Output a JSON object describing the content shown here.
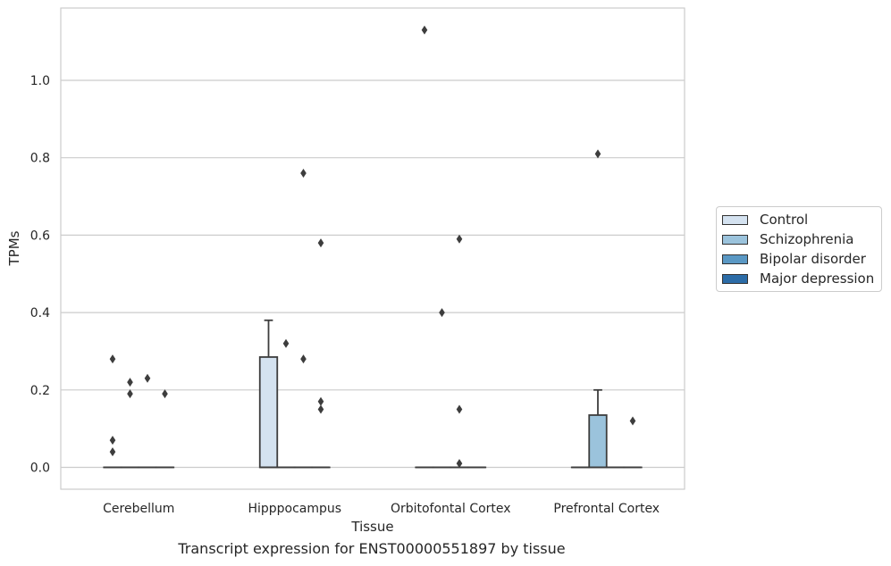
{
  "chart_data": {
    "type": "box",
    "xlabel": "Tissue",
    "ylabel": "TPMs",
    "categories": [
      "Cerebellum",
      "Hipppocampus",
      "Orbitofontal Cortex",
      "Prefrontal Cortex"
    ],
    "ylim": [
      -0.055,
      1.19
    ],
    "yticks": [
      0.0,
      0.2,
      0.4,
      0.6,
      0.8,
      1.0
    ],
    "grid": true,
    "legend_position": "right",
    "series": [
      {
        "name": "Control",
        "color": "#d4e2f0",
        "boxes": [
          {
            "q1": 0,
            "median": 0,
            "q3": 0,
            "whisker_low": 0,
            "whisker_high": 0,
            "outliers": [
              0.04,
              0.07,
              0.28
            ]
          },
          {
            "q1": 0,
            "median": 0,
            "q3": 0.285,
            "whisker_low": 0,
            "whisker_high": 0.38,
            "outliers": []
          },
          {
            "q1": 0,
            "median": 0,
            "q3": 0,
            "whisker_low": 0,
            "whisker_high": 0,
            "outliers": [
              1.13
            ]
          },
          {
            "q1": 0,
            "median": 0,
            "q3": 0,
            "whisker_low": 0,
            "whisker_high": 0,
            "outliers": []
          }
        ]
      },
      {
        "name": "Schizophrenia",
        "color": "#9bc3dc",
        "boxes": [
          {
            "q1": 0,
            "median": 0,
            "q3": 0,
            "whisker_low": 0,
            "whisker_high": 0,
            "outliers": [
              0.19,
              0.22
            ]
          },
          {
            "q1": 0,
            "median": 0,
            "q3": 0,
            "whisker_low": 0,
            "whisker_high": 0,
            "outliers": [
              0.32
            ]
          },
          {
            "q1": 0,
            "median": 0,
            "q3": 0,
            "whisker_low": 0,
            "whisker_high": 0,
            "outliers": [
              0.4
            ]
          },
          {
            "q1": 0,
            "median": 0,
            "q3": 0.135,
            "whisker_low": 0,
            "whisker_high": 0.2,
            "outliers": [
              0.81
            ]
          }
        ]
      },
      {
        "name": "Bipolar disorder",
        "color": "#5a98c4",
        "boxes": [
          {
            "q1": 0,
            "median": 0,
            "q3": 0,
            "whisker_low": 0,
            "whisker_high": 0,
            "outliers": [
              0.23
            ]
          },
          {
            "q1": 0,
            "median": 0,
            "q3": 0,
            "whisker_low": 0,
            "whisker_high": 0,
            "outliers": [
              0.28,
              0.76
            ]
          },
          {
            "q1": 0,
            "median": 0,
            "q3": 0,
            "whisker_low": 0,
            "whisker_high": 0,
            "outliers": [
              0.01,
              0.15,
              0.59
            ]
          },
          {
            "q1": 0,
            "median": 0,
            "q3": 0,
            "whisker_low": 0,
            "whisker_high": 0,
            "outliers": []
          }
        ]
      },
      {
        "name": "Major depression",
        "color": "#2c6ca7",
        "boxes": [
          {
            "q1": 0,
            "median": 0,
            "q3": 0,
            "whisker_low": 0,
            "whisker_high": 0,
            "outliers": [
              0.19
            ]
          },
          {
            "q1": 0,
            "median": 0,
            "q3": 0,
            "whisker_low": 0,
            "whisker_high": 0,
            "outliers": [
              0.15,
              0.17,
              0.58
            ]
          },
          {
            "q1": 0,
            "median": 0,
            "q3": 0,
            "whisker_low": 0,
            "whisker_high": 0,
            "outliers": []
          },
          {
            "q1": 0,
            "median": 0,
            "q3": 0,
            "whisker_low": 0,
            "whisker_high": 0,
            "outliers": [
              0.12
            ]
          }
        ]
      }
    ]
  },
  "caption": "Transcript expression for ENST00000551897 by tissue",
  "legend": {
    "items": [
      {
        "label": "Control",
        "color": "#d4e2f0"
      },
      {
        "label": "Schizophrenia",
        "color": "#9bc3dc"
      },
      {
        "label": "Bipolar disorder",
        "color": "#5a98c4"
      },
      {
        "label": "Major depression",
        "color": "#2c6ca7"
      }
    ]
  }
}
